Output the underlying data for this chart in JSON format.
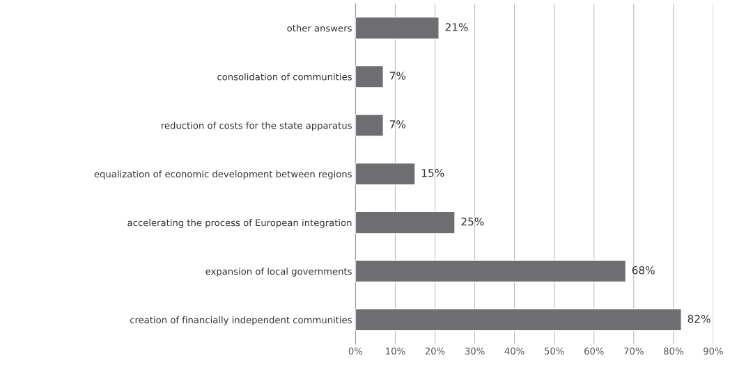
{
  "chart_data": {
    "type": "bar",
    "orientation": "horizontal",
    "categories": [
      "other answers",
      "consolidation of communities",
      "reduction of costs for the state apparatus",
      "equalization of economic development between regions",
      "accelerating the process of European integration",
      "expansion of local governments",
      "creation of financially independent communities"
    ],
    "values": [
      21,
      7,
      7,
      15,
      25,
      68,
      82
    ],
    "value_labels": [
      "21%",
      "7%",
      "7%",
      "15%",
      "25%",
      "68%",
      "82%"
    ],
    "color": "#6e6e72",
    "xlim": [
      0,
      90
    ],
    "xticks": [
      {
        "value": 0,
        "label": "0%"
      },
      {
        "value": 10,
        "label": "10%"
      },
      {
        "value": 20,
        "label": "20%"
      },
      {
        "value": 30,
        "label": "30%"
      },
      {
        "value": 40,
        "label": "40%"
      },
      {
        "value": 50,
        "label": "50%"
      },
      {
        "value": 60,
        "label": "60%"
      },
      {
        "value": 70,
        "label": "70%"
      },
      {
        "value": 80,
        "label": "80%"
      },
      {
        "value": 90,
        "label": "90%"
      }
    ],
    "grid": "x"
  }
}
